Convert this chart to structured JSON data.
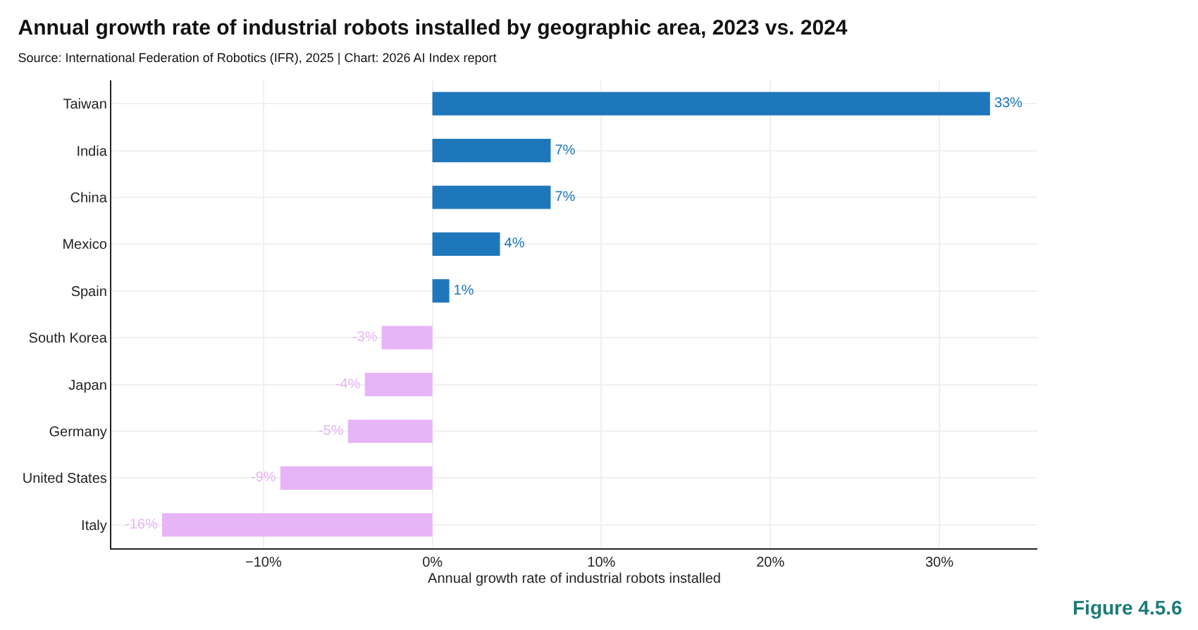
{
  "chart_data": {
    "type": "bar",
    "orientation": "horizontal",
    "title": "Annual growth rate of industrial robots installed by geographic area, 2023 vs. 2024",
    "subtitle": "Source: International Federation of Robotics (IFR), 2025 | Chart: 2026 AI Index report",
    "xlabel": "Annual growth rate of industrial robots installed",
    "categories": [
      "Taiwan",
      "India",
      "China",
      "Mexico",
      "Spain",
      "South Korea",
      "Japan",
      "Germany",
      "United States",
      "Italy"
    ],
    "values": [
      33,
      7,
      7,
      4,
      1,
      -3,
      -4,
      -5,
      -9,
      -16
    ],
    "value_labels": [
      "33%",
      "7%",
      "7%",
      "4%",
      "1%",
      "-3%",
      "-4%",
      "-5%",
      "-9%",
      "-16%"
    ],
    "colors": [
      "#1f77bb",
      "#1f77bb",
      "#1f77bb",
      "#1f77bb",
      "#1f77bb",
      "#e8b4f8",
      "#e8b4f8",
      "#e8b4f8",
      "#e8b4f8",
      "#e8b4f8"
    ],
    "xlim": [
      -19,
      35.8
    ],
    "xticks": [
      {
        "value": -10,
        "label": "−10%"
      },
      {
        "value": 0,
        "label": "0%"
      },
      {
        "value": 10,
        "label": "10%"
      },
      {
        "value": 20,
        "label": "20%"
      },
      {
        "value": 30,
        "label": "30%"
      }
    ],
    "grid": true,
    "annotations": [
      "Figure 4.5.6"
    ]
  }
}
